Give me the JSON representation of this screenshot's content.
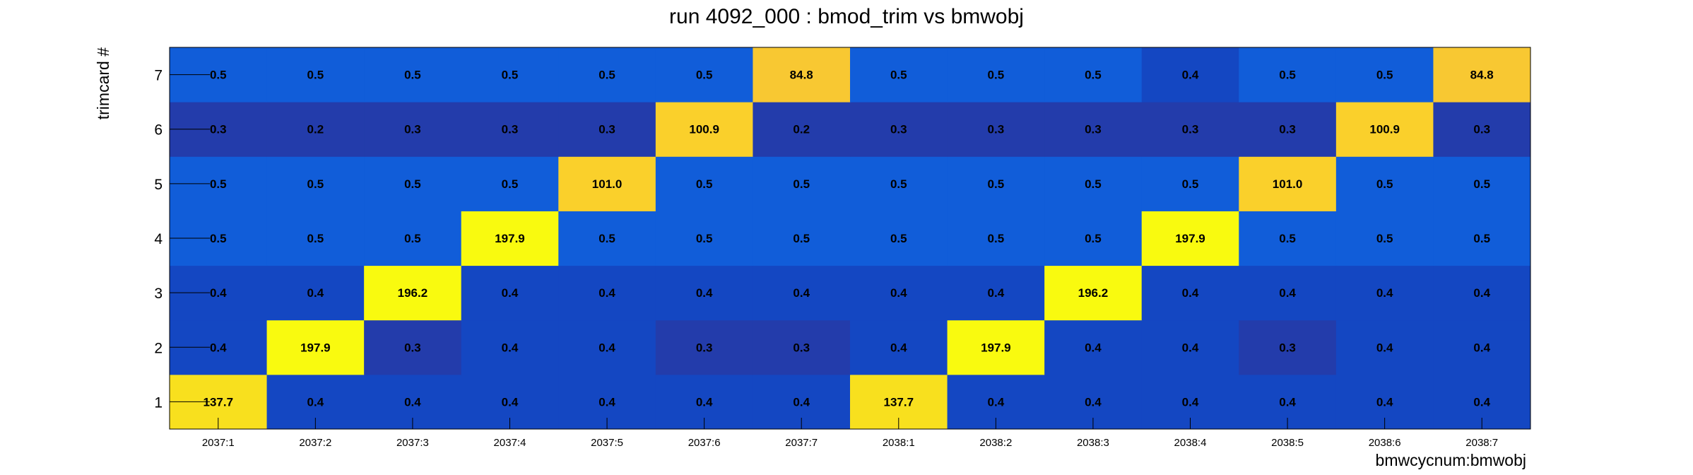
{
  "chart_data": {
    "type": "heatmap",
    "title": "run 4092_000 : bmod_trim vs bmwobj",
    "xlabel": "bmwcycnum:bmwobj",
    "ylabel": "trimcard #",
    "x_categories": [
      "2037:1",
      "2037:2",
      "2037:3",
      "2037:4",
      "2037:5",
      "2037:6",
      "2037:7",
      "2038:1",
      "2038:2",
      "2038:3",
      "2038:4",
      "2038:5",
      "2038:6",
      "2038:7"
    ],
    "y_categories": [
      "1",
      "2",
      "3",
      "4",
      "5",
      "6",
      "7"
    ],
    "values": [
      [
        137.7,
        0.4,
        0.4,
        0.4,
        0.4,
        0.4,
        0.4,
        137.7,
        0.4,
        0.4,
        0.4,
        0.4,
        0.4,
        0.4
      ],
      [
        0.4,
        197.9,
        0.3,
        0.4,
        0.4,
        0.3,
        0.3,
        0.4,
        197.9,
        0.4,
        0.4,
        0.3,
        0.4,
        0.4
      ],
      [
        0.4,
        0.4,
        196.2,
        0.4,
        0.4,
        0.4,
        0.4,
        0.4,
        0.4,
        196.2,
        0.4,
        0.4,
        0.4,
        0.4
      ],
      [
        0.5,
        0.5,
        0.5,
        197.9,
        0.5,
        0.5,
        0.5,
        0.5,
        0.5,
        0.5,
        197.9,
        0.5,
        0.5,
        0.5
      ],
      [
        0.5,
        0.5,
        0.5,
        0.5,
        101.0,
        0.5,
        0.5,
        0.5,
        0.5,
        0.5,
        0.5,
        101.0,
        0.5,
        0.5
      ],
      [
        0.3,
        0.2,
        0.3,
        0.3,
        0.3,
        100.9,
        0.2,
        0.3,
        0.3,
        0.3,
        0.3,
        0.3,
        100.9,
        0.3
      ],
      [
        0.5,
        0.5,
        0.5,
        0.5,
        0.5,
        0.5,
        84.8,
        0.5,
        0.5,
        0.5,
        0.4,
        0.5,
        0.5,
        84.8
      ]
    ],
    "colors": {
      "high": "#f9fa0f",
      "mid_high": "#f8e01e",
      "mid": "#fad02b",
      "low": "#f8c733",
      "very_low": "#f8c832",
      "blue_light": "#115dd9",
      "blue_mid": "#1447c2",
      "blue_dark": "#233cab",
      "axis": "#000000"
    }
  }
}
